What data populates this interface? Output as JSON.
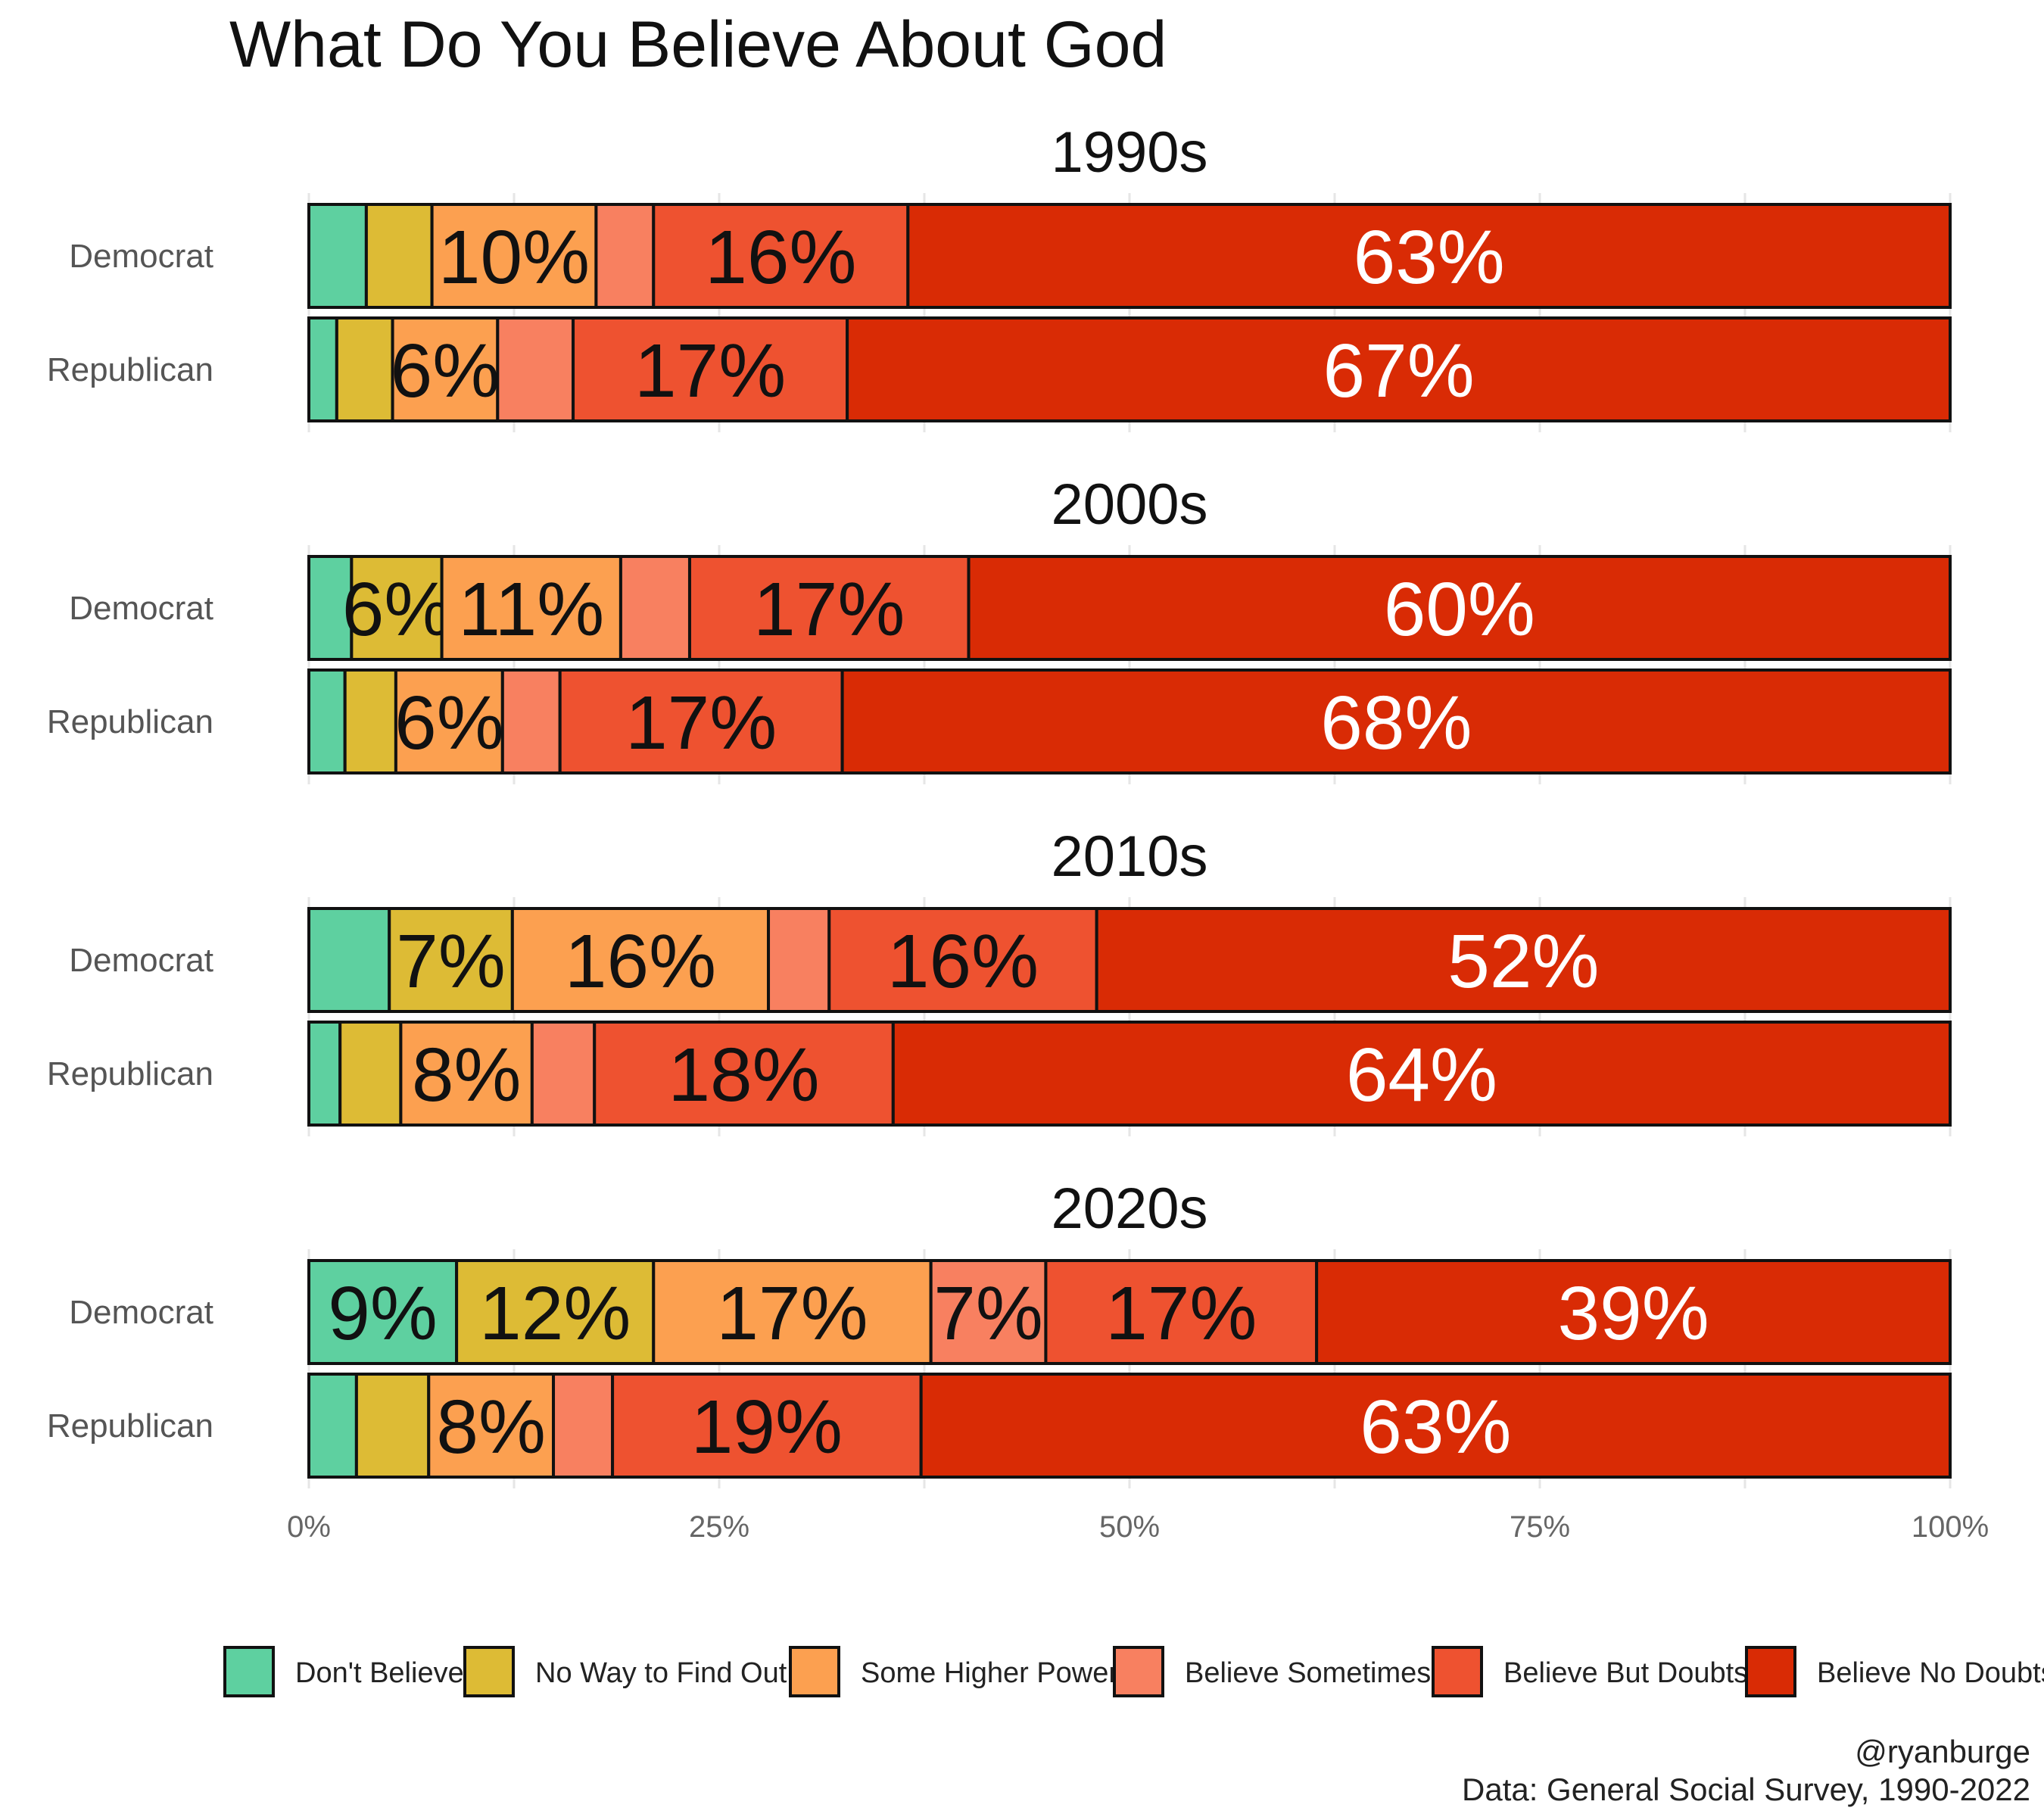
{
  "title": "What Do You Believe About God",
  "credit": {
    "handle": "@ryanburge",
    "source": "Data: General Social Survey, 1990-2022"
  },
  "chart_data": {
    "type": "bar",
    "orientation": "horizontal",
    "stacked": true,
    "grid": true,
    "legend_position": "bottom",
    "xlim": [
      0,
      100
    ],
    "x_ticks": [
      "0%",
      "25%",
      "50%",
      "75%",
      "100%"
    ],
    "categories_legend": [
      "Don't Believe",
      "No Way to Find Out",
      "Some Higher Power",
      "Believe Sometimes",
      "Believe But Doubts",
      "Believe No Doubts"
    ],
    "colors": [
      "#5ED0A0",
      "#DDBB35",
      "#FCA050",
      "#F88060",
      "#EE5230",
      "#D92B05"
    ],
    "label_colors": [
      "#111111",
      "#111111",
      "#111111",
      "#111111",
      "#111111",
      "#ffffff"
    ],
    "facets": [
      {
        "name": "1990s",
        "rows": [
          {
            "group": "Democrat",
            "values": [
              3.5,
              4,
              10,
              3.5,
              15.5,
              63.5
            ],
            "labels": [
              "",
              "",
              "10%",
              "",
              "16%",
              "63%"
            ]
          },
          {
            "group": "Republican",
            "values": [
              1.7,
              3.4,
              6.4,
              4.6,
              16.7,
              67.2
            ],
            "labels": [
              "",
              "",
              "6%",
              "",
              "17%",
              "67%"
            ]
          }
        ]
      },
      {
        "name": "2000s",
        "rows": [
          {
            "group": "Democrat",
            "values": [
              2.6,
              5.5,
              10.9,
              4.2,
              17,
              59.8
            ],
            "labels": [
              "",
              "6%",
              "11%",
              "",
              "17%",
              "60%"
            ]
          },
          {
            "group": "Republican",
            "values": [
              2.2,
              3.1,
              6.5,
              3.5,
              17.2,
              67.5
            ],
            "labels": [
              "",
              "",
              "6%",
              "",
              "17%",
              "68%"
            ]
          }
        ]
      },
      {
        "name": "2010s",
        "rows": [
          {
            "group": "Democrat",
            "values": [
              4.9,
              7.5,
              15.6,
              3.7,
              16.3,
              52
            ],
            "labels": [
              "",
              "7%",
              "16%",
              "",
              "16%",
              "52%"
            ]
          },
          {
            "group": "Republican",
            "values": [
              1.9,
              3.7,
              8,
              3.8,
              18.2,
              64.4
            ],
            "labels": [
              "",
              "",
              "8%",
              "",
              "18%",
              "64%"
            ]
          }
        ]
      },
      {
        "name": "2020s",
        "rows": [
          {
            "group": "Democrat",
            "values": [
              9,
              12,
              16.9,
              7,
              16.5,
              38.6
            ],
            "labels": [
              "9%",
              "12%",
              "17%",
              "7%",
              "17%",
              "39%"
            ]
          },
          {
            "group": "Republican",
            "values": [
              2.9,
              4.4,
              7.6,
              3.6,
              18.8,
              62.7
            ],
            "labels": [
              "",
              "",
              "8%",
              "",
              "19%",
              "63%"
            ]
          }
        ]
      }
    ]
  }
}
